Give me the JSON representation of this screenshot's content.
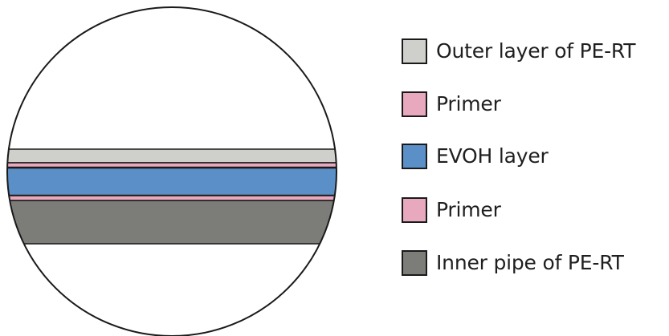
{
  "diagram": {
    "layers": [
      {
        "key": "outer",
        "color": "#cfd0cc"
      },
      {
        "key": "primer_top",
        "color": "#e8a8bd"
      },
      {
        "key": "evoh",
        "color": "#5b8fc7"
      },
      {
        "key": "primer_bottom",
        "color": "#e8a8bd"
      },
      {
        "key": "inner",
        "color": "#7c7c78"
      }
    ],
    "outline_color": "#1a1a1a"
  },
  "legend": {
    "items": [
      {
        "label": "Outer layer of PE-RT",
        "color": "#cfd0cc"
      },
      {
        "label": "Primer",
        "color": "#e8a8bd"
      },
      {
        "label": "EVOH layer",
        "color": "#5b8fc7"
      },
      {
        "label": "Primer",
        "color": "#e8a8bd"
      },
      {
        "label": "Inner pipe of PE-RT",
        "color": "#7c7c78"
      }
    ]
  }
}
